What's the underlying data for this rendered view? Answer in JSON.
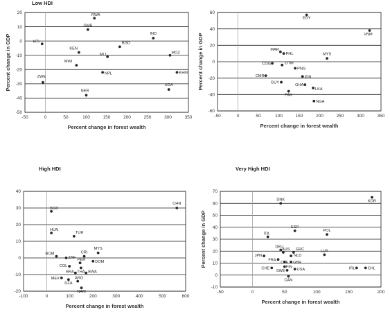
{
  "chart_data": [
    {
      "type": "scatter",
      "title": "Low HDI",
      "xlabel": "Percent change in forest wealth",
      "ylabel": "Percent change in GDP",
      "xlim": [
        -50,
        350
      ],
      "ylim": [
        -50,
        20
      ],
      "xticks": [
        -50,
        0,
        50,
        100,
        150,
        200,
        250,
        300,
        350
      ],
      "yticks": [
        -50,
        -40,
        -30,
        -20,
        -10,
        0,
        10,
        20
      ],
      "grid": "horizontal",
      "points": [
        {
          "label": "RWA",
          "x": 120,
          "y": 16
        },
        {
          "label": "GMB",
          "x": 104,
          "y": 8
        },
        {
          "label": "HTI",
          "x": -8,
          "y": -2
        },
        {
          "label": "IND",
          "x": 264,
          "y": 2
        },
        {
          "label": "KEN",
          "x": 82,
          "y": -8
        },
        {
          "label": "BGD",
          "x": 182,
          "y": -4
        },
        {
          "label": "MLI",
          "x": 152,
          "y": -11
        },
        {
          "label": "MOZ",
          "x": 305,
          "y": -10
        },
        {
          "label": "MWI",
          "x": 76,
          "y": -17
        },
        {
          "label": "NPL",
          "x": 140,
          "y": -22
        },
        {
          "label": "KHM",
          "x": 322,
          "y": -22
        },
        {
          "label": "ZWE",
          "x": -6,
          "y": -29
        },
        {
          "label": "NER",
          "x": 100,
          "y": -38
        },
        {
          "label": "UGA",
          "x": 302,
          "y": -34
        }
      ]
    },
    {
      "type": "scatter",
      "title": "",
      "xlabel": "Percent change in forest wealth",
      "ylabel": "Percent change in GDP",
      "xlim": [
        -50,
        350
      ],
      "ylim": [
        -60,
        60
      ],
      "xticks": [
        -50,
        0,
        50,
        100,
        150,
        200,
        250,
        300,
        350
      ],
      "yticks": [
        -60,
        -40,
        -20,
        0,
        20,
        40,
        60
      ],
      "grid": "horizontal",
      "points": [
        {
          "label": "EGY",
          "x": 168,
          "y": 57
        },
        {
          "label": "VNM",
          "x": 322,
          "y": 38
        },
        {
          "label": "MAR",
          "x": 104,
          "y": 12
        },
        {
          "label": "PHL",
          "x": 112,
          "y": 10
        },
        {
          "label": "MYS",
          "x": 218,
          "y": 4
        },
        {
          "label": "COG",
          "x": 84,
          "y": -2
        },
        {
          "label": "GTM",
          "x": 108,
          "y": -4
        },
        {
          "label": "PNG",
          "x": 140,
          "y": -8
        },
        {
          "label": "CMR",
          "x": 68,
          "y": -17
        },
        {
          "label": "IDN",
          "x": 158,
          "y": -18
        },
        {
          "label": "GUY",
          "x": 106,
          "y": -25
        },
        {
          "label": "GHA",
          "x": 164,
          "y": -28
        },
        {
          "label": "LKA",
          "x": 184,
          "y": -32
        },
        {
          "label": "PAK",
          "x": 124,
          "y": -36
        },
        {
          "label": "NGA",
          "x": 186,
          "y": -48
        }
      ]
    },
    {
      "type": "scatter",
      "title": "High HDI",
      "xlabel": "Percent change in forest wealth",
      "ylabel": "",
      "xlim": [
        -100,
        600
      ],
      "ylim": [
        -20,
        40
      ],
      "xticks": [
        -100,
        0,
        100,
        200,
        300,
        400,
        500,
        600
      ],
      "yticks": [
        -20,
        -10,
        0,
        10,
        20,
        30,
        40
      ],
      "grid": "horizontal",
      "points": [
        {
          "label": "CHN",
          "x": 562,
          "y": 30
        },
        {
          "label": "BGR",
          "x": 20,
          "y": 28
        },
        {
          "label": "HUN",
          "x": 20,
          "y": 15
        },
        {
          "label": "TUR",
          "x": 118,
          "y": 13
        },
        {
          "label": "ROM",
          "x": 42,
          "y": 1
        },
        {
          "label": "ZAF",
          "x": 84,
          "y": 0
        },
        {
          "label": "CRI",
          "x": 162,
          "y": 1
        },
        {
          "label": "MYS",
          "x": 222,
          "y": 3
        },
        {
          "label": "PER",
          "x": 144,
          "y": -3
        },
        {
          "label": "DOM",
          "x": 200,
          "y": -2
        },
        {
          "label": "COL",
          "x": 98,
          "y": -5
        },
        {
          "label": "THA",
          "x": 148,
          "y": -6
        },
        {
          "label": "BRA",
          "x": 124,
          "y": -9
        },
        {
          "label": "BWA",
          "x": 170,
          "y": -9
        },
        {
          "label": "MEX",
          "x": 64,
          "y": -12
        },
        {
          "label": "DZA",
          "x": 94,
          "y": -13
        },
        {
          "label": "ARG",
          "x": 134,
          "y": -14
        },
        {
          "label": "NAM",
          "x": 150,
          "y": -18
        }
      ]
    },
    {
      "type": "scatter",
      "title": "Very High HDI",
      "xlabel": "Percent change in forest wealth",
      "ylabel": "Percent change in GDP",
      "xlim": [
        -50,
        200
      ],
      "ylim": [
        -10,
        70
      ],
      "xticks": [
        -50,
        0,
        50,
        100,
        150,
        200
      ],
      "yticks": [
        -10,
        0,
        10,
        20,
        30,
        40,
        50,
        60,
        70
      ],
      "grid": "horizontal",
      "points": [
        {
          "label": "DNK",
          "x": 44,
          "y": 60
        },
        {
          "label": "KOR",
          "x": 186,
          "y": 65
        },
        {
          "label": "ESP",
          "x": 66,
          "y": 37
        },
        {
          "label": "ITA",
          "x": 24,
          "y": 32
        },
        {
          "label": "POL",
          "x": 116,
          "y": 34
        },
        {
          "label": "DEU",
          "x": 44,
          "y": 21
        },
        {
          "label": "AUS",
          "x": 48,
          "y": 19
        },
        {
          "label": "GRC",
          "x": 64,
          "y": 19
        },
        {
          "label": "NLD",
          "x": 60,
          "y": 16
        },
        {
          "label": "JPN",
          "x": 18,
          "y": 16
        },
        {
          "label": "LUX",
          "x": 112,
          "y": 17
        },
        {
          "label": "FRA",
          "x": 40,
          "y": 13
        },
        {
          "label": "CZE",
          "x": 50,
          "y": 11
        },
        {
          "label": "GBR",
          "x": 60,
          "y": 11
        },
        {
          "label": "FIN",
          "x": 50,
          "y": 7
        },
        {
          "label": "CHE",
          "x": 30,
          "y": 6
        },
        {
          "label": "USA",
          "x": 66,
          "y": 5
        },
        {
          "label": "SWE",
          "x": 54,
          "y": 4
        },
        {
          "label": "CAN",
          "x": 56,
          "y": -1
        },
        {
          "label": "IRL",
          "x": 162,
          "y": 6
        },
        {
          "label": "CHL",
          "x": 176,
          "y": 6
        }
      ]
    }
  ]
}
